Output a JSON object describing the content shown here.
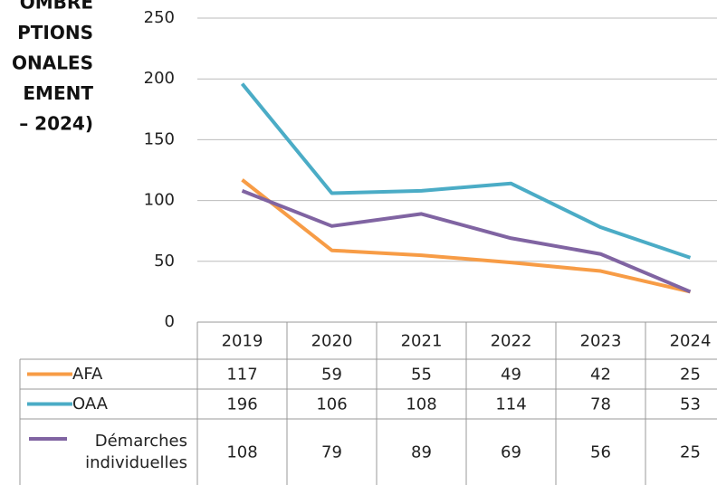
{
  "chart_data": {
    "type": "line",
    "title_lines": [
      "OMBRE",
      "PTIONS",
      "ONALES",
      "EMENT",
      "– 2024)"
    ],
    "categories": [
      "2019",
      "2020",
      "2021",
      "2022",
      "2023",
      "2024"
    ],
    "series": [
      {
        "name": "AFA",
        "color": "#f79c46",
        "values": [
          117,
          59,
          55,
          49,
          42,
          25
        ]
      },
      {
        "name": "OAA",
        "color": "#4bacc6",
        "values": [
          196,
          106,
          108,
          114,
          78,
          53
        ]
      },
      {
        "name": "Démarches individuelles",
        "color": "#8064a2",
        "values": [
          108,
          79,
          89,
          69,
          56,
          25
        ]
      }
    ],
    "ylim": [
      0,
      250
    ],
    "yticks": [
      0,
      50,
      100,
      150,
      200,
      250
    ],
    "grid": true
  }
}
